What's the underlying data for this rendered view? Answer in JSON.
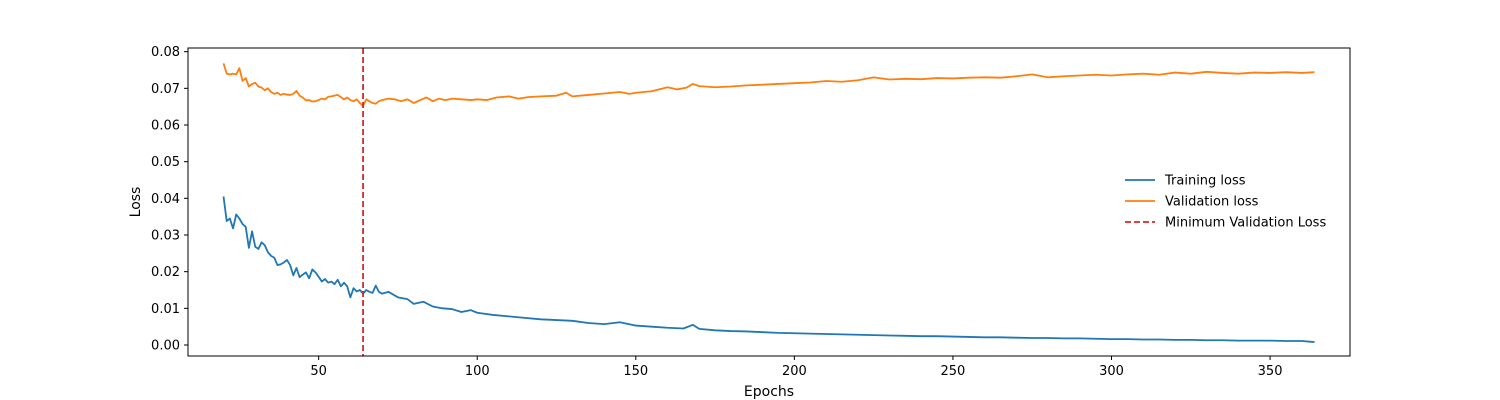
{
  "chart_data": {
    "type": "line",
    "title": "",
    "xlabel": "Epochs",
    "ylabel": "Loss",
    "xlim": [
      8.8,
      375.2
    ],
    "ylim": [
      -0.003,
      0.081
    ],
    "x_ticks": [
      50,
      100,
      150,
      200,
      250,
      300,
      350
    ],
    "y_ticks": [
      0.0,
      0.01,
      0.02,
      0.03,
      0.04,
      0.05,
      0.06,
      0.07,
      0.08
    ],
    "y_tick_labels": [
      "0.00",
      "0.01",
      "0.02",
      "0.03",
      "0.04",
      "0.05",
      "0.06",
      "0.07",
      "0.08"
    ],
    "legend_position": "center-right",
    "grid": false,
    "series": [
      {
        "name": "Training loss",
        "color": "#1f77b4",
        "style": "solid",
        "points": [
          [
            20,
            0.0405
          ],
          [
            21,
            0.0338
          ],
          [
            22,
            0.0345
          ],
          [
            23,
            0.0318
          ],
          [
            24,
            0.0356
          ],
          [
            25,
            0.0345
          ],
          [
            26,
            0.033
          ],
          [
            27,
            0.0322
          ],
          [
            28,
            0.0265
          ],
          [
            29,
            0.031
          ],
          [
            30,
            0.0268
          ],
          [
            31,
            0.0262
          ],
          [
            32,
            0.028
          ],
          [
            33,
            0.0272
          ],
          [
            34,
            0.0253
          ],
          [
            35,
            0.0243
          ],
          [
            36,
            0.0238
          ],
          [
            37,
            0.0218
          ],
          [
            38,
            0.022
          ],
          [
            39,
            0.0225
          ],
          [
            40,
            0.0232
          ],
          [
            41,
            0.0218
          ],
          [
            42,
            0.019
          ],
          [
            43,
            0.021
          ],
          [
            44,
            0.0185
          ],
          [
            45,
            0.0192
          ],
          [
            46,
            0.0198
          ],
          [
            47,
            0.0182
          ],
          [
            48,
            0.0206
          ],
          [
            49,
            0.0198
          ],
          [
            50,
            0.0186
          ],
          [
            51,
            0.0173
          ],
          [
            52,
            0.018
          ],
          [
            53,
            0.017
          ],
          [
            54,
            0.0173
          ],
          [
            55,
            0.0166
          ],
          [
            56,
            0.0178
          ],
          [
            57,
            0.016
          ],
          [
            58,
            0.017
          ],
          [
            59,
            0.016
          ],
          [
            60,
            0.013
          ],
          [
            61,
            0.0155
          ],
          [
            62,
            0.0146
          ],
          [
            63,
            0.015
          ],
          [
            64,
            0.014
          ],
          [
            65,
            0.015
          ],
          [
            66,
            0.0145
          ],
          [
            67,
            0.0142
          ],
          [
            68,
            0.0162
          ],
          [
            69,
            0.0145
          ],
          [
            70,
            0.014
          ],
          [
            72,
            0.0145
          ],
          [
            75,
            0.013
          ],
          [
            78,
            0.0125
          ],
          [
            80,
            0.0112
          ],
          [
            83,
            0.0118
          ],
          [
            86,
            0.0105
          ],
          [
            89,
            0.01
          ],
          [
            92,
            0.0098
          ],
          [
            95,
            0.009
          ],
          [
            98,
            0.0095
          ],
          [
            100,
            0.0088
          ],
          [
            105,
            0.0082
          ],
          [
            110,
            0.0078
          ],
          [
            115,
            0.0074
          ],
          [
            120,
            0.007
          ],
          [
            125,
            0.0068
          ],
          [
            130,
            0.0066
          ],
          [
            135,
            0.006
          ],
          [
            140,
            0.0057
          ],
          [
            145,
            0.0062
          ],
          [
            150,
            0.0053
          ],
          [
            155,
            0.005
          ],
          [
            160,
            0.0047
          ],
          [
            165,
            0.0045
          ],
          [
            168,
            0.0055
          ],
          [
            170,
            0.0044
          ],
          [
            175,
            0.004
          ],
          [
            180,
            0.0038
          ],
          [
            185,
            0.0037
          ],
          [
            190,
            0.0035
          ],
          [
            195,
            0.0033
          ],
          [
            200,
            0.0032
          ],
          [
            205,
            0.0031
          ],
          [
            210,
            0.003
          ],
          [
            215,
            0.0029
          ],
          [
            220,
            0.0028
          ],
          [
            225,
            0.0027
          ],
          [
            230,
            0.0026
          ],
          [
            235,
            0.0025
          ],
          [
            240,
            0.0024
          ],
          [
            245,
            0.0024
          ],
          [
            250,
            0.0023
          ],
          [
            255,
            0.0022
          ],
          [
            260,
            0.0021
          ],
          [
            265,
            0.0021
          ],
          [
            270,
            0.002
          ],
          [
            275,
            0.0019
          ],
          [
            280,
            0.0019
          ],
          [
            285,
            0.0018
          ],
          [
            290,
            0.0018
          ],
          [
            295,
            0.0017
          ],
          [
            300,
            0.0016
          ],
          [
            305,
            0.0016
          ],
          [
            310,
            0.0015
          ],
          [
            315,
            0.0015
          ],
          [
            320,
            0.0014
          ],
          [
            325,
            0.0014
          ],
          [
            330,
            0.0013
          ],
          [
            335,
            0.0013
          ],
          [
            340,
            0.0012
          ],
          [
            345,
            0.0012
          ],
          [
            350,
            0.0012
          ],
          [
            355,
            0.0011
          ],
          [
            360,
            0.0011
          ],
          [
            364,
            0.0008
          ]
        ]
      },
      {
        "name": "Validation loss",
        "color": "#ff7f0e",
        "style": "solid",
        "points": [
          [
            20,
            0.0768
          ],
          [
            21,
            0.074
          ],
          [
            22,
            0.0738
          ],
          [
            23,
            0.074
          ],
          [
            24,
            0.0738
          ],
          [
            25,
            0.0755
          ],
          [
            26,
            0.072
          ],
          [
            27,
            0.0728
          ],
          [
            28,
            0.0705
          ],
          [
            29,
            0.0712
          ],
          [
            30,
            0.0715
          ],
          [
            31,
            0.0705
          ],
          [
            32,
            0.0702
          ],
          [
            33,
            0.0695
          ],
          [
            34,
            0.07
          ],
          [
            35,
            0.069
          ],
          [
            36,
            0.0685
          ],
          [
            37,
            0.0688
          ],
          [
            38,
            0.0682
          ],
          [
            39,
            0.0685
          ],
          [
            40,
            0.0683
          ],
          [
            41,
            0.0682
          ],
          [
            42,
            0.0685
          ],
          [
            43,
            0.0693
          ],
          [
            44,
            0.068
          ],
          [
            45,
            0.0675
          ],
          [
            46,
            0.0667
          ],
          [
            47,
            0.0668
          ],
          [
            48,
            0.0664
          ],
          [
            49,
            0.0665
          ],
          [
            50,
            0.0668
          ],
          [
            51,
            0.0672
          ],
          [
            52,
            0.067
          ],
          [
            53,
            0.0677
          ],
          [
            54,
            0.0678
          ],
          [
            55,
            0.068
          ],
          [
            56,
            0.0682
          ],
          [
            57,
            0.0676
          ],
          [
            58,
            0.067
          ],
          [
            59,
            0.0675
          ],
          [
            60,
            0.0668
          ],
          [
            61,
            0.0665
          ],
          [
            62,
            0.067
          ],
          [
            63,
            0.066
          ],
          [
            64,
            0.0652
          ],
          [
            65,
            0.067
          ],
          [
            66,
            0.0665
          ],
          [
            67,
            0.066
          ],
          [
            68,
            0.0658
          ],
          [
            69,
            0.0665
          ],
          [
            70,
            0.0668
          ],
          [
            72,
            0.0672
          ],
          [
            74,
            0.067
          ],
          [
            76,
            0.0665
          ],
          [
            78,
            0.067
          ],
          [
            80,
            0.066
          ],
          [
            82,
            0.0668
          ],
          [
            84,
            0.0675
          ],
          [
            86,
            0.0665
          ],
          [
            88,
            0.0672
          ],
          [
            90,
            0.0668
          ],
          [
            92,
            0.0672
          ],
          [
            95,
            0.067
          ],
          [
            98,
            0.0668
          ],
          [
            100,
            0.067
          ],
          [
            103,
            0.0668
          ],
          [
            106,
            0.0675
          ],
          [
            110,
            0.0678
          ],
          [
            113,
            0.0672
          ],
          [
            116,
            0.0676
          ],
          [
            120,
            0.0678
          ],
          [
            125,
            0.068
          ],
          [
            128,
            0.0688
          ],
          [
            130,
            0.0678
          ],
          [
            135,
            0.0682
          ],
          [
            140,
            0.0686
          ],
          [
            145,
            0.069
          ],
          [
            148,
            0.0685
          ],
          [
            150,
            0.0688
          ],
          [
            155,
            0.0692
          ],
          [
            160,
            0.0703
          ],
          [
            163,
            0.0697
          ],
          [
            166,
            0.0702
          ],
          [
            168,
            0.0712
          ],
          [
            170,
            0.0706
          ],
          [
            175,
            0.0703
          ],
          [
            180,
            0.0705
          ],
          [
            185,
            0.0708
          ],
          [
            190,
            0.071
          ],
          [
            195,
            0.0712
          ],
          [
            200,
            0.0714
          ],
          [
            205,
            0.0716
          ],
          [
            210,
            0.072
          ],
          [
            215,
            0.0718
          ],
          [
            220,
            0.0722
          ],
          [
            225,
            0.073
          ],
          [
            230,
            0.0724
          ],
          [
            235,
            0.0726
          ],
          [
            240,
            0.0725
          ],
          [
            245,
            0.0728
          ],
          [
            250,
            0.0727
          ],
          [
            255,
            0.0729
          ],
          [
            260,
            0.073
          ],
          [
            265,
            0.0729
          ],
          [
            270,
            0.0733
          ],
          [
            275,
            0.0738
          ],
          [
            280,
            0.073
          ],
          [
            285,
            0.0733
          ],
          [
            290,
            0.0735
          ],
          [
            295,
            0.0737
          ],
          [
            300,
            0.0735
          ],
          [
            305,
            0.0738
          ],
          [
            310,
            0.074
          ],
          [
            315,
            0.0737
          ],
          [
            320,
            0.0743
          ],
          [
            325,
            0.074
          ],
          [
            330,
            0.0745
          ],
          [
            335,
            0.0742
          ],
          [
            340,
            0.074
          ],
          [
            345,
            0.0743
          ],
          [
            350,
            0.0742
          ],
          [
            355,
            0.0744
          ],
          [
            360,
            0.0742
          ],
          [
            364,
            0.0744
          ]
        ]
      }
    ],
    "vertical_lines": [
      {
        "name": "Minimum Validation Loss",
        "x": 64,
        "color": "#d62728",
        "style": "dashed"
      }
    ]
  }
}
